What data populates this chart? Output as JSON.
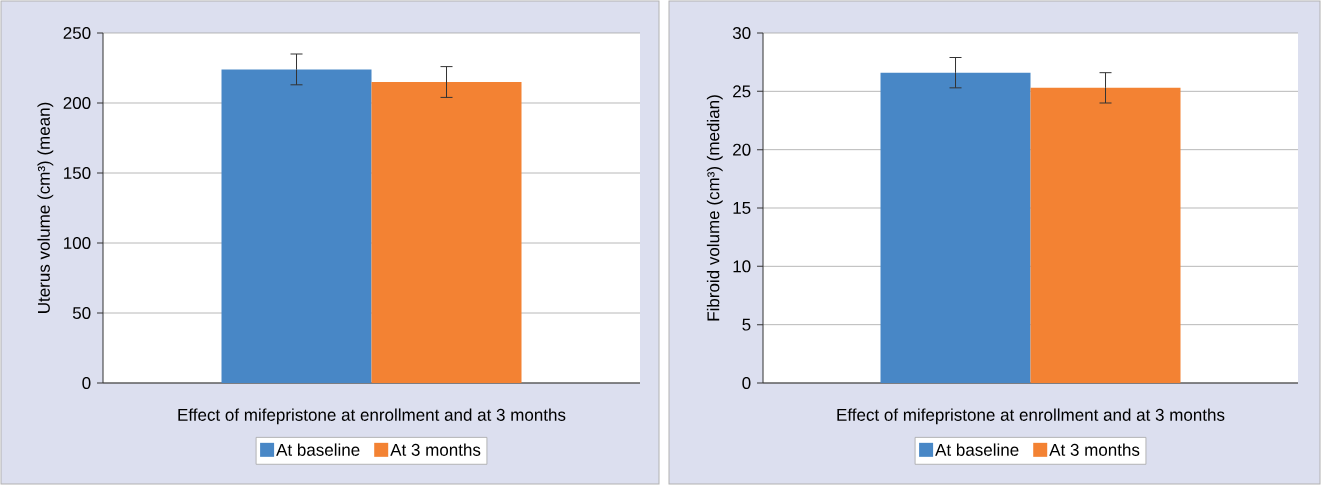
{
  "chart_data": [
    {
      "type": "bar",
      "xlabel": "Effect of mifepristone at enrollment and at 3 months",
      "ylabel": "Uterus volume (cm³) (mean)",
      "categories": [
        null
      ],
      "ylim": [
        0,
        250
      ],
      "yticks": [
        0,
        50,
        100,
        150,
        200,
        250
      ],
      "grid": "y",
      "legend": "bottom",
      "series": [
        {
          "name": "At baseline",
          "color": "#4887c6",
          "values": [
            224
          ],
          "errors": [
            11
          ]
        },
        {
          "name": "At 3 months",
          "color": "#f38233",
          "values": [
            215
          ],
          "errors": [
            11
          ]
        }
      ]
    },
    {
      "type": "bar",
      "xlabel": "Effect of mifepristone at enrollment and at 3 months",
      "ylabel": "Fibroid volume (cm³) (median)",
      "categories": [
        null
      ],
      "ylim": [
        0,
        30
      ],
      "yticks": [
        0,
        5,
        10,
        15,
        20,
        25,
        30
      ],
      "grid": "y",
      "legend": "bottom",
      "series": [
        {
          "name": "At baseline",
          "color": "#4887c6",
          "values": [
            26.6
          ],
          "errors": [
            1.3
          ]
        },
        {
          "name": "At 3 months",
          "color": "#f38233",
          "values": [
            25.3
          ],
          "errors": [
            1.3
          ]
        }
      ]
    }
  ]
}
